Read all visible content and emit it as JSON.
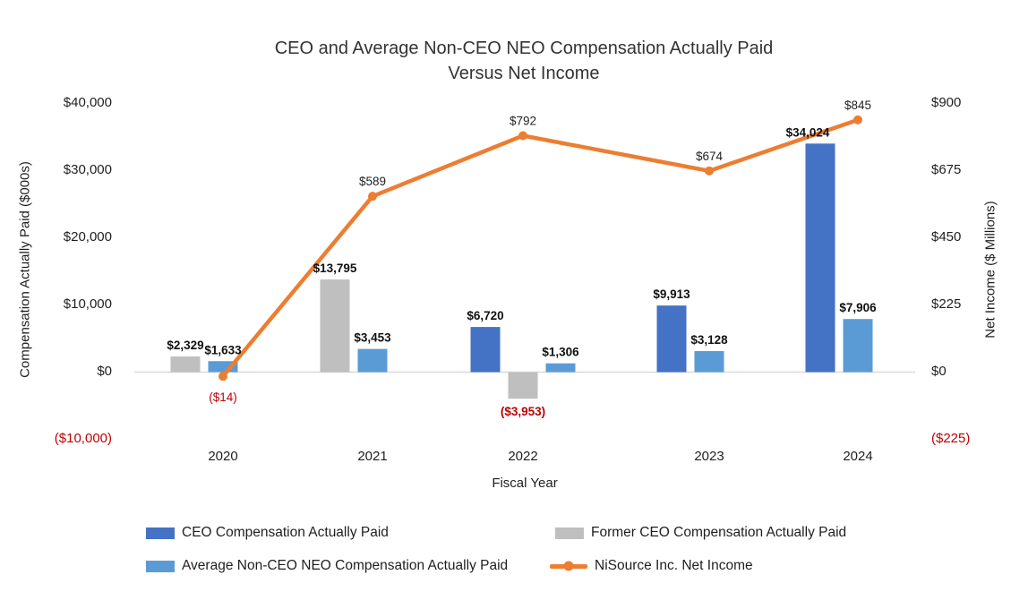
{
  "title": {
    "line1": "CEO and Average Non-CEO NEO Compensation Actually Paid",
    "line2": "Versus Net Income"
  },
  "chart_data": {
    "type": "bar+line combo",
    "title": "CEO and Average Non-CEO NEO Compensation Actually Paid Versus Net Income",
    "categories": [
      "2020",
      "2021",
      "2022",
      "2023",
      "2024"
    ],
    "xlabel": "Fiscal Year",
    "grid": "zero-line only",
    "left_axis": {
      "title": "Compensation Actually Paid ($000s)",
      "ticks": [
        "$40,000",
        "$30,000",
        "$20,000",
        "$10,000",
        "$0",
        "($10,000)"
      ],
      "max": 40000,
      "min": -10000
    },
    "right_axis": {
      "title": "Net Income ($ Millions)",
      "ticks": [
        "$900",
        "$675",
        "$450",
        "$225",
        "$0",
        "($225)"
      ],
      "max": 900,
      "min": -225
    },
    "negative_label_color": "#C00000",
    "zero_line_color": "#D9D9D9",
    "series": [
      {
        "name": "CEO Compensation Actually Paid",
        "type": "bar",
        "color": "#4472C4",
        "values": [
          null,
          null,
          6720,
          9913,
          34024
        ],
        "labels": [
          "",
          "",
          "$6,720",
          "$9,913",
          "$34,024"
        ]
      },
      {
        "name": "Former CEO Compensation Actually Paid",
        "type": "bar",
        "color": "#BFBFBF",
        "values": [
          2329,
          13795,
          -3953,
          null,
          null
        ],
        "labels": [
          "$2,329",
          "$13,795",
          "($3,953)",
          "",
          ""
        ]
      },
      {
        "name": "Average Non-CEO NEO Compensation Actually Paid",
        "type": "bar",
        "color": "#5B9BD5",
        "values": [
          1633,
          3453,
          1306,
          3128,
          7906
        ],
        "labels": [
          "$1,633",
          "$3,453",
          "$1,306",
          "$3,128",
          "$7,906"
        ]
      },
      {
        "name": "NiSource Inc. Net Income",
        "type": "line",
        "axis": "right",
        "color": "#ED7D31",
        "values": [
          -14,
          589,
          792,
          674,
          845
        ],
        "labels": [
          "($14)",
          "$589",
          "$792",
          "$674",
          "$845"
        ]
      }
    ]
  },
  "legend": {
    "items": [
      {
        "label": "CEO Compensation Actually Paid",
        "swatch": "bar",
        "color": "#4472C4"
      },
      {
        "label": "Former CEO Compensation Actually Paid",
        "swatch": "bar",
        "color": "#BFBFBF"
      },
      {
        "label": "Average Non-CEO NEO Compensation Actually Paid",
        "swatch": "bar",
        "color": "#5B9BD5"
      },
      {
        "label": "NiSource Inc. Net Income",
        "swatch": "line-marker",
        "color": "#ED7D31"
      }
    ]
  }
}
